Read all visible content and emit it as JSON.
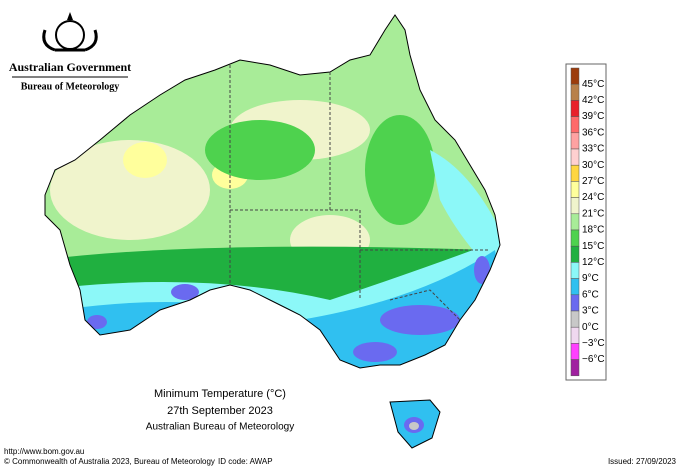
{
  "header": {
    "government": "Australian Government",
    "agency": "Bureau of Meteorology"
  },
  "legend": {
    "labels": [
      "45°C",
      "42°C",
      "39°C",
      "36°C",
      "33°C",
      "30°C",
      "27°C",
      "24°C",
      "21°C",
      "18°C",
      "15°C",
      "12°C",
      "9°C",
      "6°C",
      "3°C",
      "0°C",
      "−3°C",
      "−6°C"
    ],
    "colors": [
      "#9c3c0c",
      "#b8804a",
      "#e8202a",
      "#ff6a6a",
      "#ffa2a2",
      "#ffd0d0",
      "#ffd640",
      "#ffff9c",
      "#f0f4cc",
      "#a8ec98",
      "#4ed24e",
      "#20b040",
      "#8cf8f8",
      "#30c0f0",
      "#6a6af0",
      "#c8c8c8",
      "#f0d8f0",
      "#ff40ff",
      "#a020a0"
    ]
  },
  "title": {
    "line1": "Minimum Temperature (°C)",
    "line2": "27th September 2023",
    "line3": "Australian Bureau of Meteorology"
  },
  "footer": {
    "url": "http://www.bom.gov.au",
    "copyright": "© Commonwealth of Australia 2023, Bureau of Meteorology",
    "id_code": "ID code: AWAP",
    "issued": "Issued: 27/09/2023"
  }
}
